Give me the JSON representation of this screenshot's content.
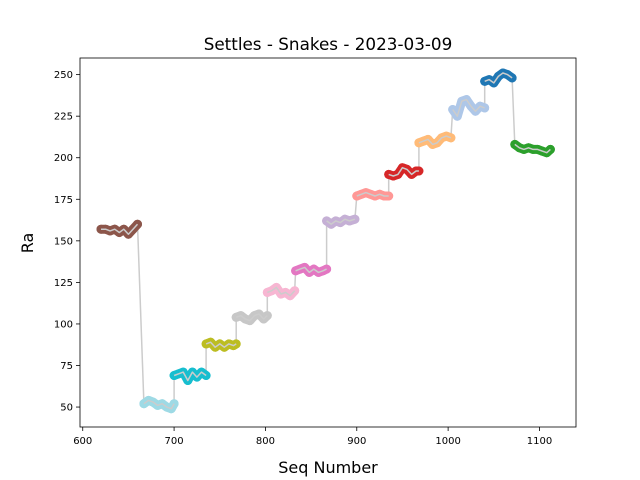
{
  "chart_data": {
    "type": "line",
    "title": "Settles - Snakes - 2023-03-09",
    "xlabel": "Seq Number",
    "ylabel": "Ra",
    "xlim": [
      597,
      1140
    ],
    "ylim": [
      38,
      260
    ],
    "xticks": [
      600,
      700,
      800,
      900,
      1000,
      1100
    ],
    "yticks": [
      50,
      75,
      100,
      125,
      150,
      175,
      200,
      225,
      250
    ],
    "grid": false,
    "connector_color": "#cccccc",
    "series": [
      {
        "color": "#8c564b",
        "x": [
          620,
          625,
          630,
          635,
          640,
          645,
          650,
          655,
          660
        ],
        "y": [
          157,
          157,
          156,
          157,
          155,
          157,
          154,
          157,
          160
        ]
      },
      {
        "color": "#9edae5",
        "x": [
          667,
          672,
          677,
          682,
          687,
          692,
          697,
          700
        ],
        "y": [
          52,
          54,
          53,
          51,
          52,
          50,
          49,
          52
        ]
      },
      {
        "color": "#17becf",
        "x": [
          700,
          705,
          710,
          715,
          720,
          725,
          730,
          735
        ],
        "y": [
          69,
          70,
          71,
          66,
          71,
          68,
          71,
          69
        ]
      },
      {
        "color": "#bcbd22",
        "x": [
          735,
          740,
          745,
          750,
          755,
          760,
          765,
          768
        ],
        "y": [
          88,
          89,
          86,
          88,
          86,
          88,
          87,
          88
        ]
      },
      {
        "color": "#c7c7c7",
        "x": [
          768,
          773,
          778,
          783,
          788,
          793,
          798,
          802
        ],
        "y": [
          104,
          105,
          103,
          102,
          105,
          106,
          103,
          105
        ]
      },
      {
        "color": "#f7b6d2",
        "x": [
          802,
          807,
          812,
          817,
          822,
          827,
          832
        ],
        "y": [
          119,
          120,
          122,
          118,
          119,
          117,
          120
        ]
      },
      {
        "color": "#e377c2",
        "x": [
          833,
          838,
          843,
          848,
          853,
          858,
          863,
          867
        ],
        "y": [
          132,
          133,
          134,
          131,
          133,
          131,
          132,
          133
        ]
      },
      {
        "color": "#c5b0d5",
        "x": [
          867,
          872,
          877,
          882,
          887,
          892,
          898
        ],
        "y": [
          162,
          160,
          162,
          161,
          163,
          162,
          163
        ]
      },
      {
        "color": "#ff9896",
        "x": [
          900,
          905,
          910,
          915,
          920,
          925,
          930,
          935
        ],
        "y": [
          177,
          178,
          179,
          178,
          177,
          178,
          177,
          177
        ]
      },
      {
        "color": "#d62728",
        "x": [
          935,
          940,
          945,
          950,
          955,
          960,
          965,
          968
        ],
        "y": [
          190,
          189,
          190,
          194,
          193,
          190,
          192,
          192
        ]
      },
      {
        "color": "#ffbb78",
        "x": [
          968,
          973,
          978,
          983,
          988,
          993,
          998,
          1003
        ],
        "y": [
          209,
          210,
          211,
          208,
          209,
          212,
          213,
          212
        ]
      },
      {
        "color": "#aec7e8",
        "x": [
          1005,
          1010,
          1015,
          1020,
          1025,
          1030,
          1035,
          1040
        ],
        "y": [
          229,
          225,
          234,
          235,
          231,
          228,
          231,
          230
        ]
      },
      {
        "color": "#1f77b4",
        "x": [
          1040,
          1045,
          1050,
          1055,
          1060,
          1065,
          1070
        ],
        "y": [
          246,
          247,
          245,
          249,
          251,
          250,
          248
        ]
      },
      {
        "color": "#2ca02c",
        "x": [
          1073,
          1078,
          1083,
          1088,
          1093,
          1098,
          1103,
          1108,
          1112
        ],
        "y": [
          208,
          206,
          205,
          206,
          205,
          205,
          204,
          203,
          205
        ]
      }
    ]
  }
}
